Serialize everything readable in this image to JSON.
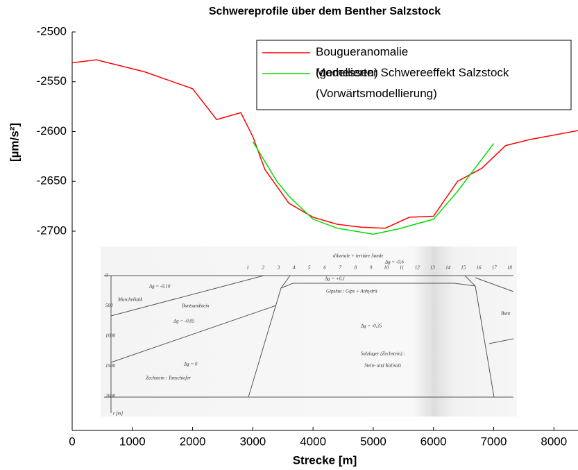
{
  "chart_data": {
    "type": "line",
    "title": "Schwereprofile über dem Benther Salzstock",
    "ylabel": "[µm/s²]",
    "xlabel": "Strecke [m]",
    "xlim": [
      0,
      8400
    ],
    "ylim": [
      -2900,
      -2500
    ],
    "xticks": [
      0,
      1000,
      2000,
      3000,
      4000,
      5000,
      6000,
      7000,
      8000
    ],
    "yticks": [
      -2500,
      -2550,
      -2600,
      -2650,
      -2700
    ],
    "grid": false,
    "legend": "upper right",
    "series": [
      {
        "name": "Bougueranomalie (gemessen)",
        "color": "#ff0000",
        "x": [
          0,
          400,
          1200,
          2000,
          2400,
          2800,
          3000,
          3200,
          3600,
          4000,
          4400,
          4800,
          5200,
          5600,
          6000,
          6400,
          6800,
          7200,
          7600,
          8400
        ],
        "values": [
          -2531,
          -2528,
          -2540,
          -2557,
          -2588,
          -2581,
          -2605,
          -2638,
          -2672,
          -2686,
          -2693,
          -2696,
          -2697,
          -2686,
          -2685,
          -2650,
          -2637,
          -2614,
          -2608,
          -2599
        ]
      },
      {
        "name": "Modellierter Schwereeffekt Salzstock (Vorwärtsmodellierung)",
        "color": "#00dd00",
        "x": [
          3000,
          3400,
          3600,
          4000,
          4400,
          5000,
          5400,
          6000,
          6400,
          7000
        ],
        "values": [
          -2610,
          -2650,
          -2665,
          -2688,
          -2697,
          -2703,
          -2698,
          -2688,
          -2660,
          -2612
        ]
      }
    ],
    "inset": {
      "stations": [
        1,
        2,
        3,
        4,
        5,
        6,
        7,
        8,
        9,
        10,
        11,
        12,
        13,
        14,
        15,
        16,
        17,
        18
      ],
      "depths": [
        0,
        500,
        1000,
        1500,
        2000
      ],
      "labels": [
        "diluviale + tertiäre Sande",
        "Δg = -0,6",
        "Δg = +0,1",
        "Gipshut : Gips + Anhydrit",
        "Δg = -0,10",
        "Muschelkalk",
        "Buntsandstein",
        "Δg = -0,05",
        "Bunt",
        "Δg = -0,35",
        "Salzlager (Zechstein) :",
        "Stein- und Kalisalz",
        "Δg = 0",
        "Zechstein : Tonschiefer",
        "t [m]"
      ]
    }
  }
}
